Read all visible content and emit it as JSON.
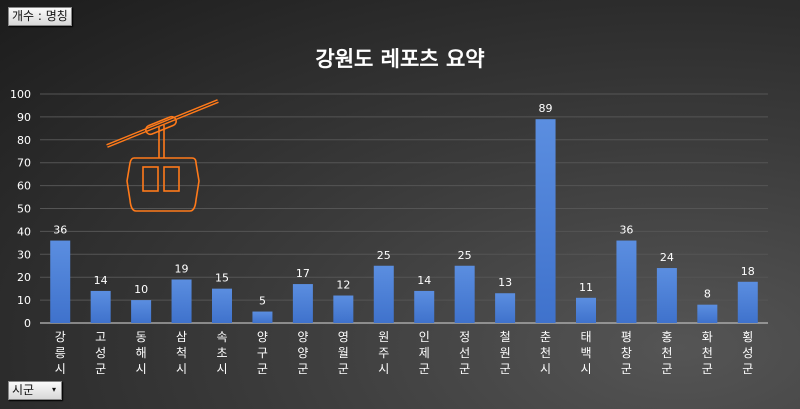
{
  "value_field_button": "개수 : 명칭",
  "axis_field_button": {
    "label": "시군",
    "icon": "dropdown-arrow-icon"
  },
  "decoration_icon": "cable-car-icon",
  "colors": {
    "bar": "#3f72cc",
    "bar_light": "#5b8ee0",
    "icon": "#ff7a1a",
    "text": "#ffffff",
    "grid": "#555555"
  },
  "chart_data": {
    "type": "bar",
    "title": "강원도 레포츠 요약",
    "categories": [
      "강릉시",
      "고성군",
      "동해시",
      "삼척시",
      "속초시",
      "양구군",
      "양양군",
      "영월군",
      "원주시",
      "인제군",
      "정선군",
      "철원군",
      "춘천시",
      "태백시",
      "평창군",
      "홍천군",
      "화천군",
      "횡성군"
    ],
    "values": [
      36,
      14,
      10,
      19,
      15,
      5,
      17,
      12,
      25,
      14,
      25,
      13,
      89,
      11,
      36,
      24,
      8,
      18
    ],
    "ylim": [
      0,
      100
    ],
    "yticks": [
      0,
      10,
      20,
      30,
      40,
      50,
      60,
      70,
      80,
      90,
      100
    ],
    "grid": true,
    "data_labels": true,
    "legend": "none"
  }
}
